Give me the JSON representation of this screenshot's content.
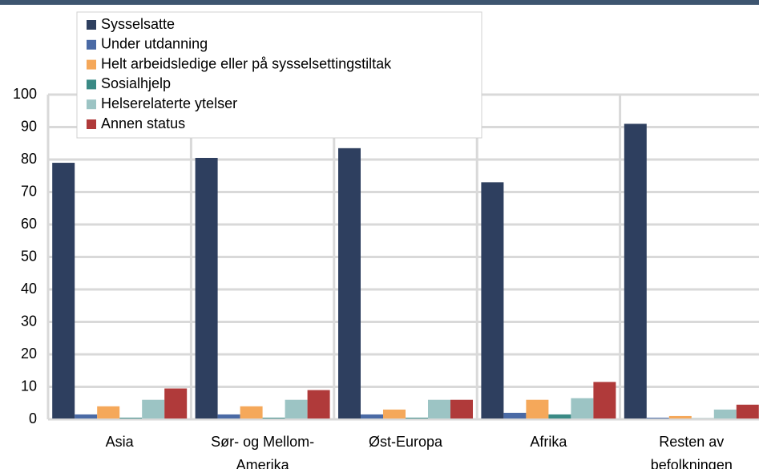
{
  "chart_data": {
    "type": "bar",
    "categories": [
      "Asia",
      "Sør- og Mellom-Amerika",
      "Øst-Europa",
      "Afrika",
      "Resten av befolkningen"
    ],
    "series": [
      {
        "name": "Sysselsatte",
        "color": "#2e3f5f",
        "values": [
          79,
          80.5,
          83.5,
          73,
          91
        ]
      },
      {
        "name": "Under utdanning",
        "color": "#4a6aa5",
        "values": [
          1.5,
          1.5,
          1.5,
          2,
          0.5
        ]
      },
      {
        "name": "Helt arbeidsledige eller på sysselsettingstiltak",
        "color": "#f5a85a",
        "values": [
          4,
          4,
          3,
          6,
          1
        ]
      },
      {
        "name": "Sosialhjelp",
        "color": "#3a8a85",
        "values": [
          0.5,
          0.5,
          0.5,
          1.5,
          0.3
        ]
      },
      {
        "name": "Helserelaterte ytelser",
        "color": "#9cc4c4",
        "values": [
          6,
          6,
          6,
          6.5,
          3
        ]
      },
      {
        "name": "Annen status",
        "color": "#b03a3a",
        "values": [
          9.5,
          9,
          6,
          11.5,
          4.5
        ]
      }
    ],
    "ylim": [
      0,
      100
    ],
    "yticks": [
      0,
      10,
      20,
      30,
      40,
      50,
      60,
      70,
      80,
      90,
      100
    ],
    "grid": true,
    "legend": "top-left"
  }
}
